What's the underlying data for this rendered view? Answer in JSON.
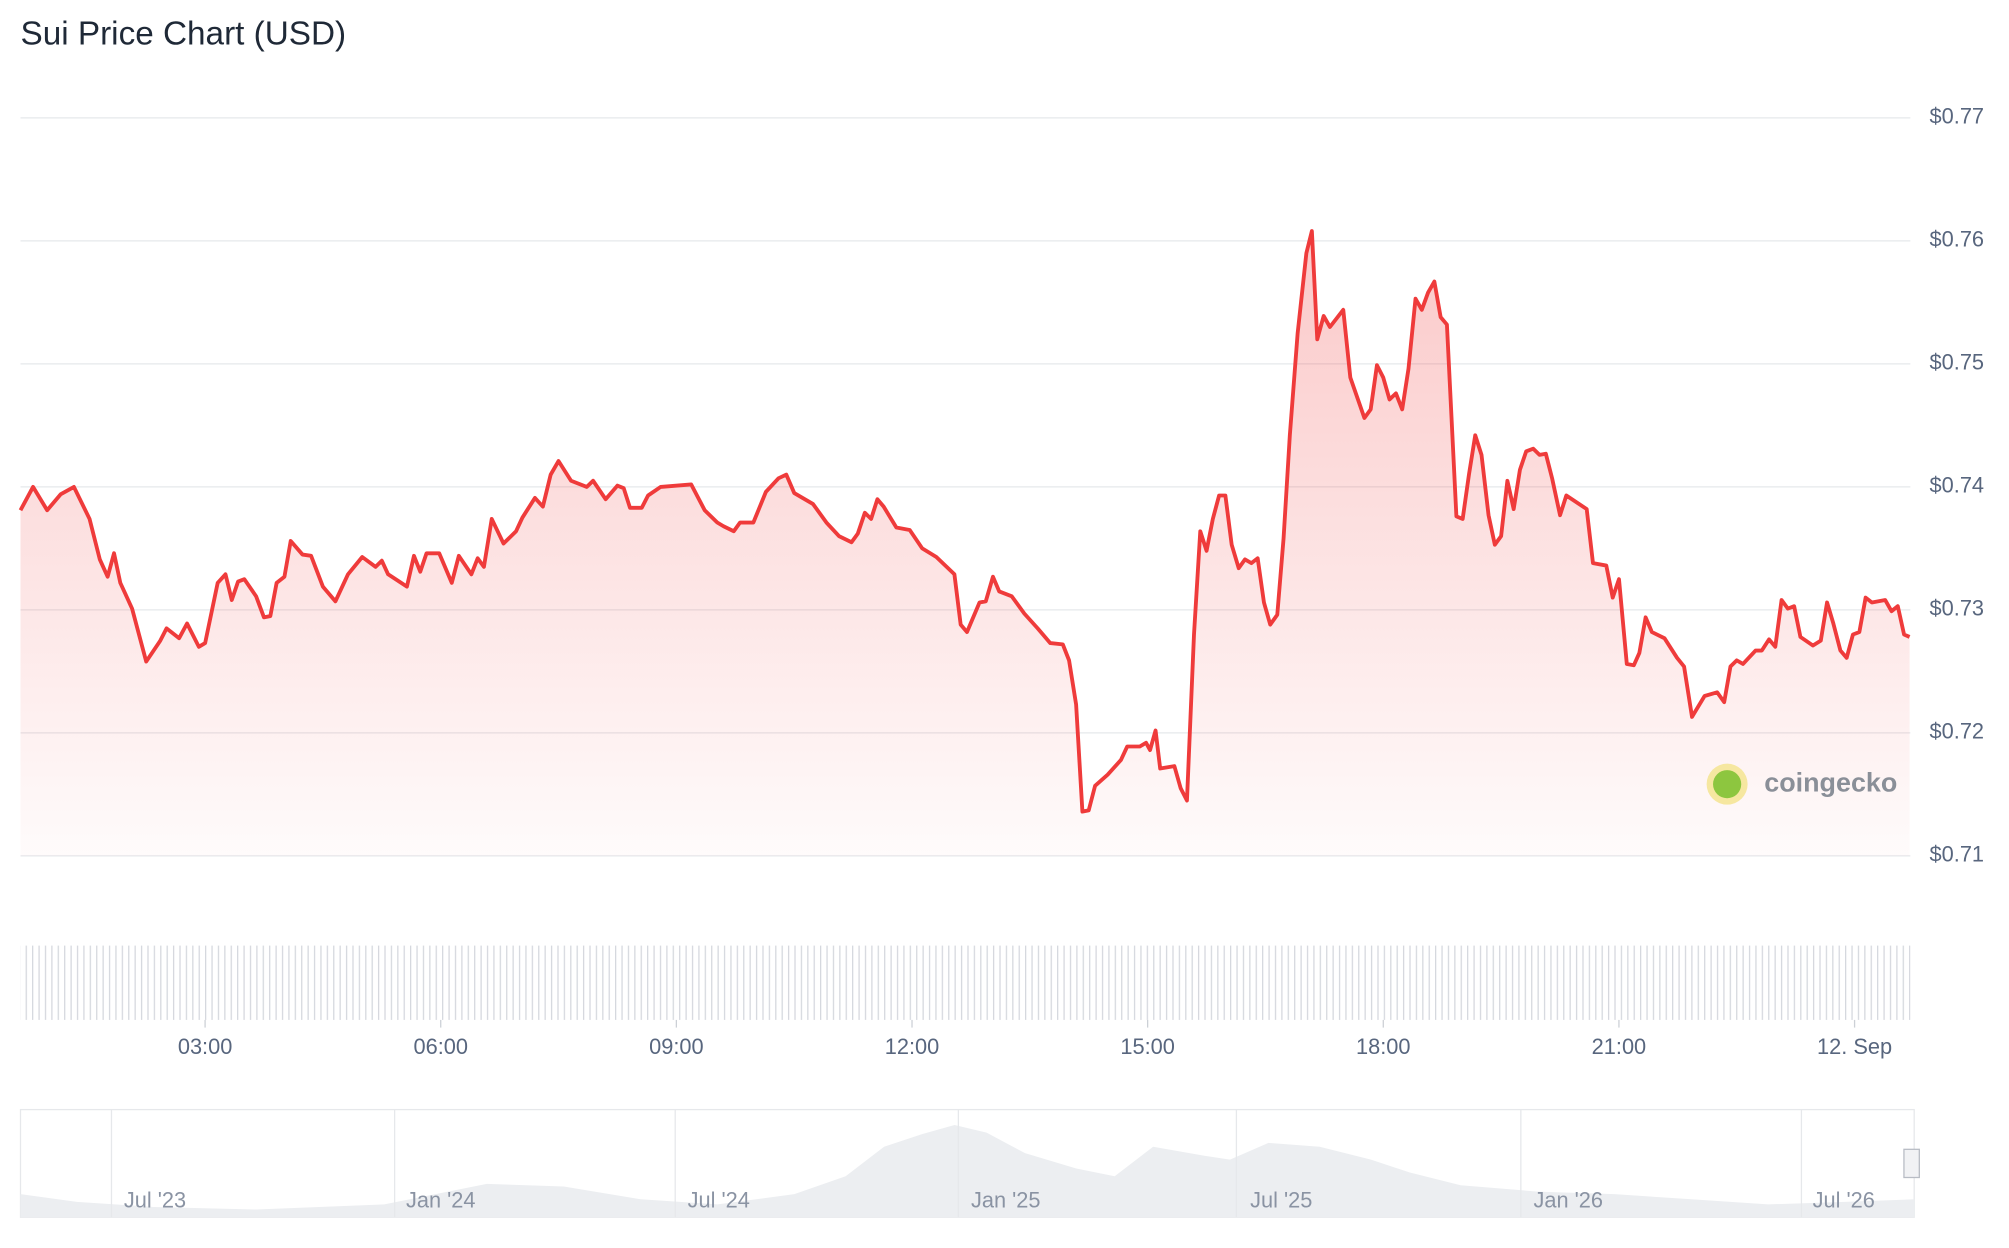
{
  "chart_data": {
    "type": "line",
    "title": "Sui Price Chart (USD)",
    "color": "#ef3b3b",
    "x": [
      0.65,
      0.81,
      0.99,
      1.16,
      1.33,
      1.53,
      1.66,
      1.76,
      1.84,
      1.92,
      2.07,
      2.25,
      2.43,
      2.51,
      2.67,
      2.77,
      2.92,
      3.0,
      3.16,
      3.26,
      3.34,
      3.42,
      3.5,
      3.65,
      3.75,
      3.83,
      3.91,
      4.01,
      4.09,
      4.24,
      4.35,
      4.5,
      4.66,
      4.82,
      5.0,
      5.17,
      5.25,
      5.33,
      5.57,
      5.66,
      5.74,
      5.82,
      5.98,
      6.14,
      6.23,
      6.39,
      6.47,
      6.55,
      6.65,
      6.8,
      6.96,
      7.04,
      7.2,
      7.3,
      7.4,
      7.5,
      7.66,
      7.86,
      7.94,
      8.1,
      8.25,
      8.33,
      8.41,
      8.56,
      8.64,
      8.8,
      9.19,
      9.36,
      9.52,
      9.6,
      9.73,
      9.81,
      9.98,
      10.14,
      10.3,
      10.4,
      10.5,
      10.74,
      10.91,
      11.07,
      11.23,
      11.31,
      11.4,
      11.48,
      11.56,
      11.64,
      11.8,
      11.97,
      12.13,
      12.31,
      12.54,
      12.62,
      12.7,
      12.86,
      12.94,
      13.03,
      13.11,
      13.27,
      13.43,
      13.6,
      13.76,
      13.92,
      14.0,
      14.09,
      14.17,
      14.25,
      14.33,
      14.49,
      14.66,
      14.74,
      14.9,
      14.98,
      15.03,
      15.1,
      15.16,
      15.34,
      15.42,
      15.5,
      15.59,
      15.67,
      15.75,
      15.83,
      15.91,
      15.99,
      16.07,
      16.16,
      16.24,
      16.32,
      16.4,
      16.48,
      16.56,
      16.65,
      16.73,
      16.81,
      16.91,
      17.02,
      17.09,
      17.16,
      17.24,
      17.32,
      17.49,
      17.58,
      17.76,
      17.84,
      17.92,
      18.0,
      18.08,
      18.16,
      18.24,
      18.32,
      18.41,
      18.49,
      18.57,
      18.65,
      18.73,
      18.81,
      18.93,
      19.01,
      19.09,
      19.17,
      19.25,
      19.34,
      19.42,
      19.5,
      19.58,
      19.66,
      19.74,
      19.82,
      19.91,
      19.99,
      20.07,
      20.15,
      20.25,
      20.33,
      20.59,
      20.67,
      20.84,
      20.92,
      21.0,
      21.1,
      21.19,
      21.26,
      21.34,
      21.42,
      21.58,
      21.74,
      21.83,
      21.93,
      22.09,
      22.25,
      22.34,
      22.42,
      22.5,
      22.58,
      22.74,
      22.82,
      22.91,
      22.99,
      23.07,
      23.15,
      23.23,
      23.31,
      23.47,
      23.57,
      23.65,
      23.73,
      23.82,
      23.9,
      23.98,
      24.06,
      24.14,
      24.22,
      24.39,
      24.47,
      24.55,
      24.63,
      24.7
    ],
    "values": [
      0.7381,
      0.74,
      0.7381,
      0.7394,
      0.74,
      0.7374,
      0.7341,
      0.7327,
      0.7346,
      0.7322,
      0.7301,
      0.7258,
      0.7275,
      0.7285,
      0.7277,
      0.7289,
      0.727,
      0.7273,
      0.7322,
      0.7329,
      0.7308,
      0.7323,
      0.7325,
      0.7311,
      0.7294,
      0.7295,
      0.7322,
      0.7327,
      0.7356,
      0.7345,
      0.7344,
      0.7319,
      0.7307,
      0.7329,
      0.7343,
      0.7335,
      0.734,
      0.7329,
      0.7319,
      0.7344,
      0.7331,
      0.7346,
      0.7346,
      0.7322,
      0.7344,
      0.7329,
      0.7342,
      0.7335,
      0.7374,
      0.7354,
      0.7364,
      0.7375,
      0.7391,
      0.7384,
      0.741,
      0.7421,
      0.7405,
      0.74,
      0.7405,
      0.739,
      0.7401,
      0.7399,
      0.7383,
      0.7383,
      0.7393,
      0.74,
      0.7402,
      0.7381,
      0.7371,
      0.7368,
      0.7364,
      0.7371,
      0.7371,
      0.7396,
      0.7407,
      0.741,
      0.7395,
      0.7386,
      0.7371,
      0.736,
      0.7355,
      0.7362,
      0.7379,
      0.7374,
      0.739,
      0.7384,
      0.7367,
      0.7365,
      0.735,
      0.7343,
      0.7329,
      0.7288,
      0.7282,
      0.7306,
      0.7307,
      0.7327,
      0.7315,
      0.7311,
      0.7297,
      0.7285,
      0.7273,
      0.7272,
      0.7259,
      0.7223,
      0.7136,
      0.7137,
      0.7157,
      0.7166,
      0.7178,
      0.7189,
      0.7189,
      0.7192,
      0.7186,
      0.7202,
      0.7171,
      0.7173,
      0.7155,
      0.7145,
      0.728,
      0.7364,
      0.7348,
      0.7374,
      0.7393,
      0.7393,
      0.7353,
      0.7334,
      0.7341,
      0.7338,
      0.7342,
      0.7306,
      0.7288,
      0.7296,
      0.7358,
      0.7442,
      0.7525,
      0.759,
      0.7608,
      0.752,
      0.7539,
      0.753,
      0.7544,
      0.7489,
      0.7456,
      0.7463,
      0.7499,
      0.7489,
      0.7471,
      0.7476,
      0.7463,
      0.7496,
      0.7553,
      0.7544,
      0.7558,
      0.7567,
      0.7538,
      0.7532,
      0.7376,
      0.7374,
      0.741,
      0.7442,
      0.7426,
      0.7377,
      0.7353,
      0.736,
      0.7405,
      0.7382,
      0.7414,
      0.7429,
      0.7431,
      0.7426,
      0.7427,
      0.7407,
      0.7377,
      0.7393,
      0.7382,
      0.7338,
      0.7336,
      0.731,
      0.7325,
      0.7256,
      0.7255,
      0.7265,
      0.7294,
      0.7282,
      0.7277,
      0.7261,
      0.7254,
      0.7213,
      0.723,
      0.7233,
      0.7225,
      0.7254,
      0.7259,
      0.7256,
      0.7267,
      0.7267,
      0.7276,
      0.727,
      0.7308,
      0.7301,
      0.7303,
      0.7278,
      0.7271,
      0.7275,
      0.7306,
      0.7289,
      0.7267,
      0.7261,
      0.728,
      0.7282,
      0.731,
      0.7306,
      0.7308,
      0.7299,
      0.7303,
      0.728,
      0.7278
    ],
    "xlim": [
      0.65,
      24.71
    ],
    "ylim": [
      0.71,
      0.77
    ],
    "xticks": [
      {
        "value": 3,
        "label": "03:00"
      },
      {
        "value": 6,
        "label": "06:00"
      },
      {
        "value": 9,
        "label": "09:00"
      },
      {
        "value": 12,
        "label": "12:00"
      },
      {
        "value": 15,
        "label": "15:00"
      },
      {
        "value": 18,
        "label": "18:00"
      },
      {
        "value": 21,
        "label": "21:00"
      },
      {
        "value": 24,
        "label": "12. Sep"
      }
    ],
    "yticks": [
      {
        "value": 0.71,
        "label": "$0.71"
      },
      {
        "value": 0.72,
        "label": "$0.72"
      },
      {
        "value": 0.73,
        "label": "$0.73"
      },
      {
        "value": 0.74,
        "label": "$0.74"
      },
      {
        "value": 0.75,
        "label": "$0.75"
      },
      {
        "value": 0.76,
        "label": "$0.76"
      },
      {
        "value": 0.77,
        "label": "$0.77"
      }
    ],
    "grid": true,
    "watermark": "coingecko"
  },
  "navigator": {
    "labels": [
      "Jul '23",
      "Jan '24",
      "Jul '24",
      "Jan '25",
      "Jul '25",
      "Jan '26",
      "Jul '26"
    ]
  }
}
